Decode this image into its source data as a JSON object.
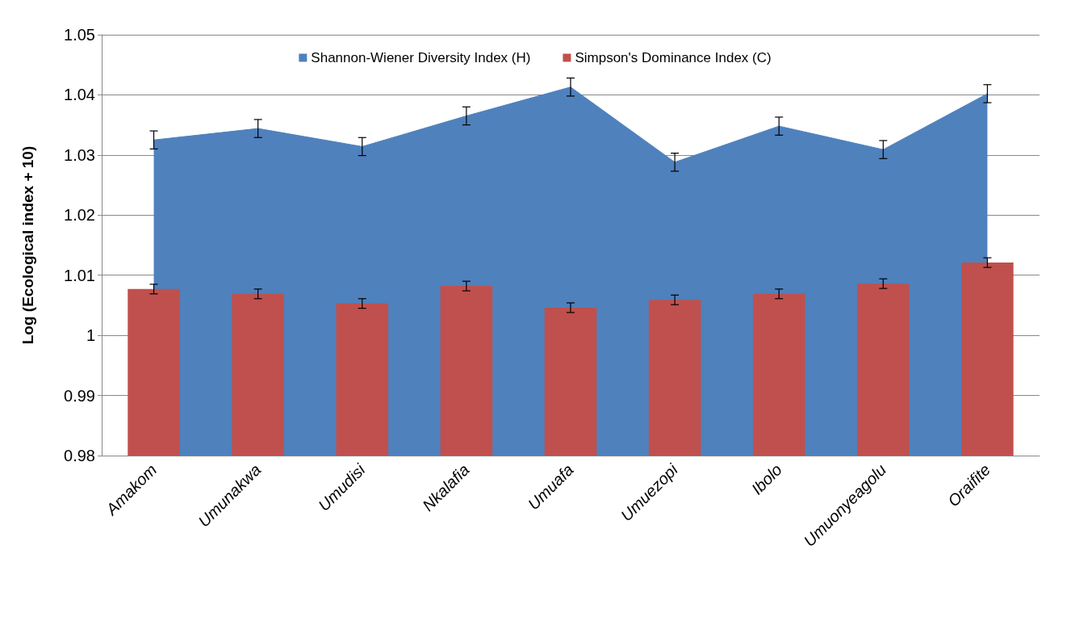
{
  "chart_data": {
    "type": "bar",
    "ylabel": "Log (Ecological index + 10)",
    "categories": [
      "Amakom",
      "Umunakwa",
      "Umudisi",
      "Nkalafia",
      "Umuafa",
      "Umuezopi",
      "Ibolo",
      "Umuonyeagolu",
      "Oraifite"
    ],
    "series": [
      {
        "name": "Shannon-Wiener Diversity Index (H)",
        "type": "area",
        "color": "#4f81bd",
        "values": [
          1.0325,
          1.0344,
          1.0314,
          1.0365,
          1.0413,
          1.0288,
          1.0348,
          1.0309,
          1.0402
        ],
        "errors": [
          0.0015,
          0.0015,
          0.0015,
          0.0015,
          0.0015,
          0.0015,
          0.0015,
          0.0015,
          0.0015
        ]
      },
      {
        "name": "Simpson's Dominance Index (C)",
        "color": "#c0504d",
        "values": [
          1.0077,
          1.0069,
          1.0053,
          1.0082,
          1.0046,
          1.0059,
          1.0069,
          1.0086,
          1.0121
        ],
        "errors": [
          0.0008,
          0.0008,
          0.0008,
          0.0008,
          0.0008,
          0.0008,
          0.0008,
          0.0008,
          0.0008
        ]
      }
    ],
    "ylim": [
      0.98,
      1.05
    ],
    "yticks": [
      0.98,
      0.99,
      1,
      1.01,
      1.02,
      1.03,
      1.04,
      1.05
    ],
    "grid": "y",
    "legend": "top"
  }
}
